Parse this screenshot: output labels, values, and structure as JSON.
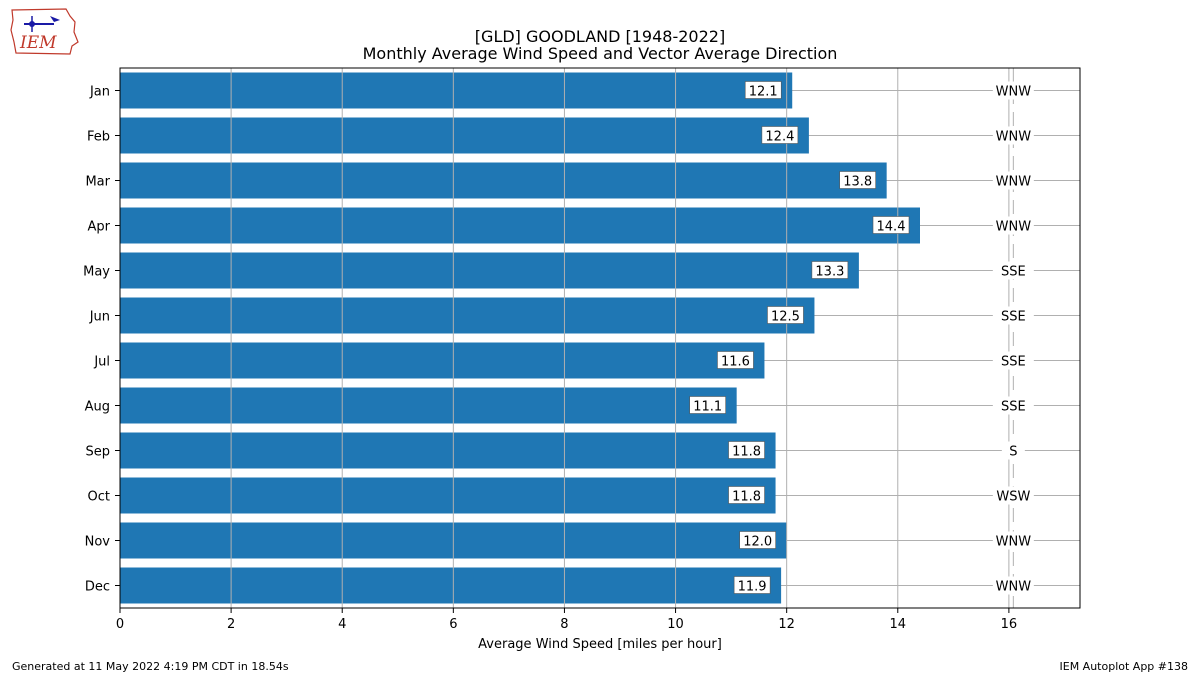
{
  "logo": {
    "text": "IEM"
  },
  "chart_data": {
    "type": "bar",
    "orientation": "horizontal",
    "title": "[GLD] GOODLAND [1948-2022]",
    "subtitle": "Monthly Average Wind Speed and Vector Average Direction",
    "xlabel": "Average Wind Speed [miles per hour]",
    "ylabel": "",
    "xlim": [
      0,
      17.28
    ],
    "xticks": [
      0,
      2,
      4,
      6,
      8,
      10,
      12,
      14,
      16
    ],
    "categories": [
      "Jan",
      "Feb",
      "Mar",
      "Apr",
      "May",
      "Jun",
      "Jul",
      "Aug",
      "Sep",
      "Oct",
      "Nov",
      "Dec"
    ],
    "values": [
      12.1,
      12.4,
      13.8,
      14.4,
      13.3,
      12.5,
      11.6,
      11.1,
      11.8,
      11.8,
      12.0,
      11.9
    ],
    "value_labels": [
      "12.1",
      "12.4",
      "13.8",
      "14.4",
      "13.3",
      "12.5",
      "11.6",
      "11.1",
      "11.8",
      "11.8",
      "12.0",
      "11.9"
    ],
    "directions": [
      "WNW",
      "WNW",
      "WNW",
      "WNW",
      "SSE",
      "SSE",
      "SSE",
      "SSE",
      "S",
      "WSW",
      "WNW",
      "WNW"
    ],
    "direction_label_x": 15.9,
    "bar_color": "#1f77b4",
    "grid": true
  },
  "footer": {
    "left": "Generated at 11 May 2022 4:19 PM CDT in 18.54s",
    "right": "IEM Autoplot App #138"
  }
}
